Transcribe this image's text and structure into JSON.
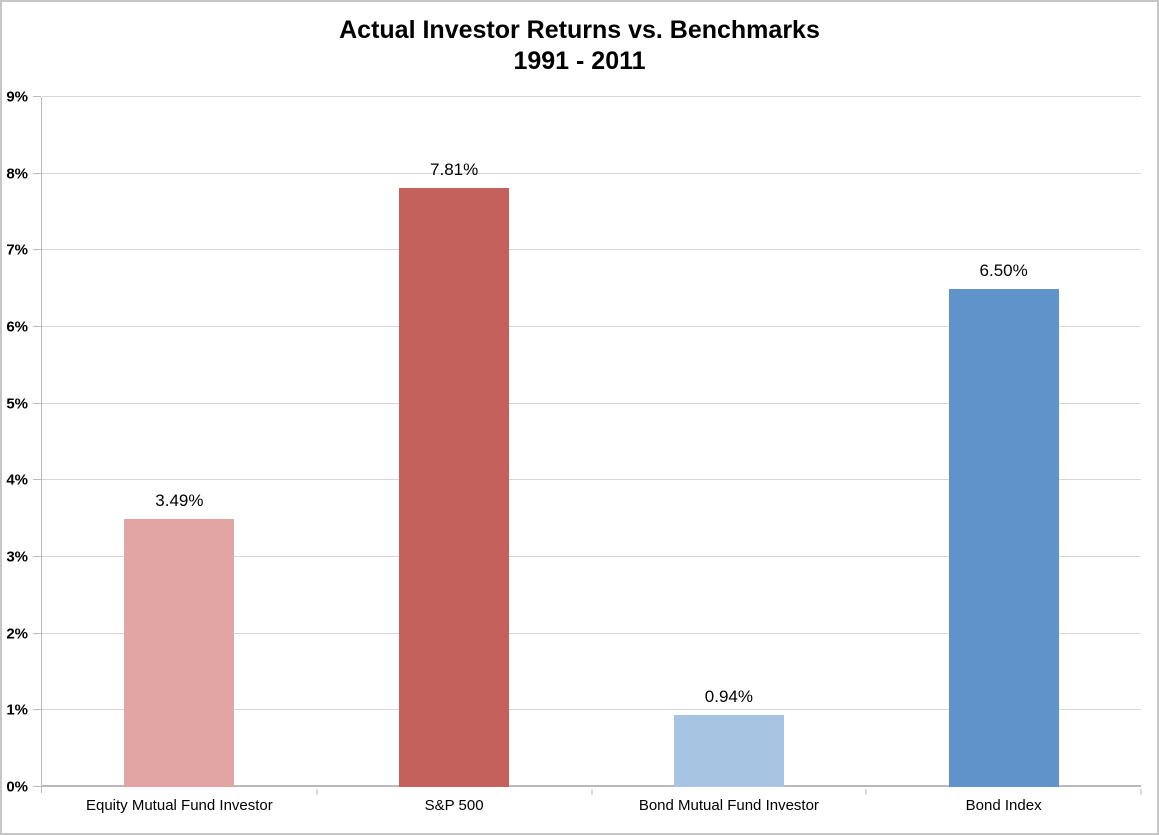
{
  "chart_data": {
    "type": "bar",
    "title": "Actual Investor Returns vs. Benchmarks",
    "subtitle": "1991 - 2011",
    "categories": [
      "Equity Mutual Fund Investor",
      "S&P 500",
      "Bond Mutual Fund Investor",
      "Bond Index"
    ],
    "values": [
      3.49,
      7.81,
      0.94,
      6.5
    ],
    "data_labels": [
      "3.49%",
      "7.81%",
      "0.94%",
      "6.50%"
    ],
    "bar_colors": [
      "#E2A5A3",
      "#C5615D",
      "#A7C4E2",
      "#6093C9"
    ],
    "xlabel": "",
    "ylabel": "",
    "ylim": [
      0,
      9
    ],
    "ytick_step": 1,
    "ytick_labels": [
      "0%",
      "1%",
      "2%",
      "3%",
      "4%",
      "5%",
      "6%",
      "7%",
      "8%",
      "9%"
    ],
    "grid": "horizontal",
    "legend": "none",
    "colors": {
      "gridline": "#D6D6D6",
      "axis": "#B9B9B9",
      "frame_border": "#C6C6C6",
      "text": "#000000",
      "background": "#FFFFFF"
    }
  }
}
